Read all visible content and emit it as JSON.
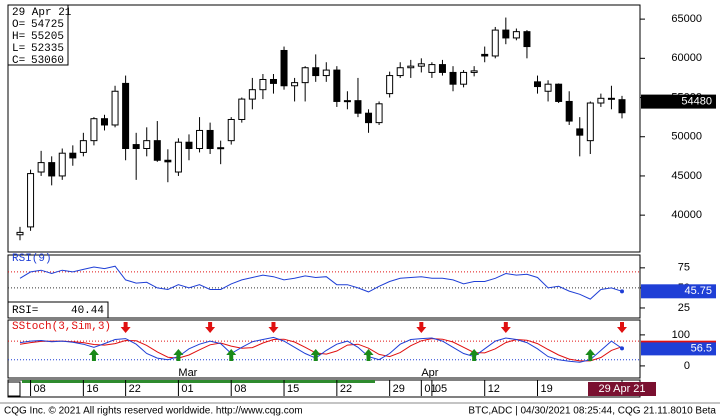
{
  "chart_data": {
    "type": "candlestick",
    "info_date_label": null,
    "info_labels": [
      "O=",
      "H=",
      "L=",
      "C="
    ],
    "categories": [
      null,
      "08",
      null,
      null,
      null,
      null,
      "16",
      null,
      null,
      null,
      "22",
      null,
      null,
      null,
      null,
      "01",
      null,
      null,
      null,
      null,
      "08",
      null,
      null,
      null,
      null,
      "15",
      null,
      null,
      null,
      null,
      "22",
      null,
      null,
      null,
      null,
      "29",
      null,
      null,
      "01",
      "05",
      null,
      null,
      null,
      null,
      "12",
      null,
      null,
      null,
      null,
      "19",
      null,
      null,
      null,
      null,
      null,
      null,
      null,
      "29 Apr 21"
    ],
    "x_sublabels": [
      null,
      null,
      null,
      null,
      null,
      null,
      null,
      null,
      null,
      null,
      null,
      null,
      null,
      null,
      null,
      "Mar",
      null,
      null,
      null,
      null,
      null,
      null,
      null,
      null,
      null,
      null,
      null,
      null,
      null,
      null,
      null,
      null,
      null,
      null,
      null,
      null,
      null,
      null,
      "Apr",
      null,
      null,
      null,
      null,
      null,
      null,
      null,
      null,
      null,
      null,
      null,
      null,
      null,
      null,
      null,
      null,
      null,
      null,
      null
    ],
    "ohlc": [
      [
        37500,
        38500,
        36800,
        37800
      ],
      [
        38500,
        45800,
        38000,
        45300
      ],
      [
        45500,
        48200,
        45000,
        46700
      ],
      [
        46700,
        47500,
        43800,
        45000
      ],
      [
        45000,
        48500,
        44500,
        47900
      ],
      [
        47900,
        48900,
        46300,
        47300
      ],
      [
        48000,
        50500,
        47500,
        49500
      ],
      [
        49500,
        52500,
        48900,
        52300
      ],
      [
        52300,
        52800,
        50800,
        51500
      ],
      [
        51500,
        56500,
        51200,
        55800
      ],
      [
        56800,
        57800,
        47000,
        48500
      ],
      [
        49000,
        50500,
        44500,
        48500
      ],
      [
        48500,
        51200,
        47500,
        49500
      ],
      [
        49500,
        52000,
        46800,
        47000
      ],
      [
        47000,
        48400,
        44200,
        46800
      ],
      [
        45500,
        49800,
        45000,
        49300
      ],
      [
        49300,
        50300,
        47000,
        48500
      ],
      [
        48500,
        52500,
        48000,
        50800
      ],
      [
        50800,
        51800,
        47800,
        48500
      ],
      [
        48500,
        49500,
        46500,
        48600
      ],
      [
        49500,
        52500,
        49000,
        52200
      ],
      [
        52200,
        55000,
        51800,
        54800
      ],
      [
        54800,
        57500,
        53500,
        56000
      ],
      [
        56000,
        58000,
        54800,
        57300
      ],
      [
        57300,
        58000,
        55500,
        56800
      ],
      [
        61000,
        61500,
        56000,
        56500
      ],
      [
        56500,
        57500,
        54500,
        56900
      ],
      [
        56900,
        59000,
        54500,
        58800
      ],
      [
        58800,
        60500,
        57000,
        57800
      ],
      [
        57800,
        59500,
        57000,
        58500
      ],
      [
        58500,
        59000,
        53800,
        54500
      ],
      [
        54500,
        55800,
        53500,
        54600
      ],
      [
        54600,
        57500,
        52500,
        53000
      ],
      [
        53000,
        53500,
        50500,
        51800
      ],
      [
        51800,
        54500,
        51500,
        54200
      ],
      [
        55500,
        58300,
        55000,
        57800
      ],
      [
        57800,
        59500,
        57500,
        58800
      ],
      [
        58800,
        59800,
        57500,
        59000
      ],
      [
        59000,
        60000,
        58200,
        59300
      ],
      [
        58200,
        59500,
        57500,
        59200
      ],
      [
        59200,
        59800,
        57800,
        58200
      ],
      [
        58200,
        59000,
        55800,
        56700
      ],
      [
        56700,
        58500,
        56300,
        58200
      ],
      [
        58200,
        59000,
        57700,
        58400
      ],
      [
        60500,
        61500,
        59500,
        60300
      ],
      [
        60300,
        64000,
        60000,
        63600
      ],
      [
        63600,
        65200,
        61800,
        62600
      ],
      [
        62600,
        63800,
        62300,
        63400
      ],
      [
        63400,
        63600,
        60000,
        61500
      ],
      [
        57000,
        57800,
        55500,
        56400
      ],
      [
        55800,
        57200,
        54500,
        56700
      ],
      [
        56700,
        56800,
        54300,
        54500
      ],
      [
        54500,
        55800,
        51500,
        52000
      ],
      [
        51000,
        52500,
        47500,
        50200
      ],
      [
        49500,
        54500,
        47800,
        54300
      ],
      [
        54300,
        55500,
        53800,
        54900
      ],
      [
        54900,
        56500,
        53500,
        54800
      ],
      [
        54725,
        55205,
        52335,
        53060
      ]
    ],
    "ylim": [
      35300,
      66800
    ],
    "yticks": [
      40000,
      45000,
      50000,
      55000,
      60000,
      65000
    ],
    "last_price": 54480,
    "rsi": {
      "title": "RSI(9)",
      "readout_label": "RSI=",
      "readout_value": "40.44",
      "color": "#1f3fd6",
      "values": [
        62,
        70,
        72,
        68,
        72,
        70,
        73,
        76,
        74,
        77,
        60,
        56,
        57,
        50,
        48,
        54,
        50,
        54,
        48,
        48,
        55,
        60,
        63,
        66,
        64,
        60,
        62,
        65,
        63,
        64,
        54,
        54,
        50,
        45,
        52,
        58,
        62,
        63,
        64,
        62,
        62,
        60,
        55,
        58,
        58,
        62,
        68,
        66,
        67,
        63,
        50,
        52,
        46,
        42,
        36,
        48,
        50,
        45.75
      ],
      "ylim": [
        12.5,
        91
      ],
      "yticks": [
        75,
        50,
        25
      ],
      "upper_level": 70,
      "mid_level": 50,
      "last_value_label": "45.75"
    },
    "stoch": {
      "title": "SStoch(3,Sim,3)",
      "k_color": "#1f3fd6",
      "d_color": "#e01010",
      "k": [
        75,
        80,
        82,
        78,
        80,
        76,
        70,
        60,
        72,
        85,
        88,
        70,
        40,
        25,
        20,
        30,
        55,
        70,
        80,
        72,
        40,
        60,
        78,
        85,
        92,
        80,
        60,
        40,
        25,
        50,
        70,
        80,
        60,
        30,
        20,
        40,
        70,
        85,
        88,
        90,
        80,
        60,
        40,
        30,
        55,
        80,
        90,
        85,
        75,
        55,
        30,
        20,
        15,
        12,
        20,
        50,
        80,
        56.5
      ],
      "d": [
        70,
        75,
        79,
        80,
        80,
        78,
        75,
        69,
        67,
        72,
        82,
        81,
        66,
        45,
        28,
        25,
        35,
        52,
        68,
        74,
        64,
        57,
        59,
        74,
        85,
        86,
        77,
        60,
        42,
        38,
        48,
        67,
        70,
        57,
        37,
        30,
        43,
        65,
        81,
        88,
        86,
        77,
        60,
        43,
        42,
        55,
        75,
        85,
        83,
        72,
        53,
        35,
        22,
        16,
        16,
        27,
        50,
        62
      ],
      "signals": [
        null,
        null,
        null,
        null,
        null,
        null,
        null,
        "up",
        null,
        null,
        "down",
        null,
        null,
        null,
        null,
        "up",
        null,
        null,
        "down",
        null,
        "up",
        null,
        null,
        null,
        "down",
        null,
        null,
        null,
        "up",
        null,
        null,
        null,
        null,
        "up",
        null,
        null,
        null,
        null,
        "down",
        null,
        null,
        null,
        null,
        "up",
        null,
        null,
        "down",
        null,
        null,
        null,
        null,
        null,
        null,
        null,
        "up",
        null,
        null,
        "down"
      ],
      "ylim": [
        -39,
        148
      ],
      "yticks": [
        100,
        0
      ],
      "upper_level": 80,
      "lower_level": 20,
      "last_value_label": "56.5"
    },
    "footer_left": "CQG Inc. © 2021 All rights reserved worldwide. http://www.cqg.com",
    "footer_right": "BTC,ADC | 04/30/2021 08:25:44, CQG 21.11.8010 Beta"
  }
}
